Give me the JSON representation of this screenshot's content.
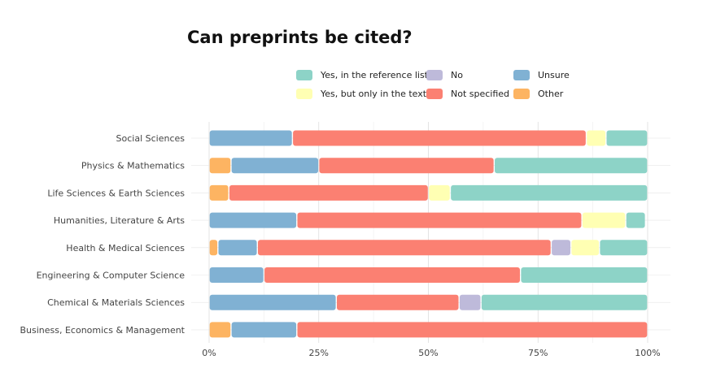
{
  "chart_data": {
    "type": "bar",
    "orientation": "horizontal",
    "stacked": true,
    "normalized": true,
    "title": "Can preprints be cited?",
    "xlabel": "",
    "ylabel": "",
    "xlim": [
      0,
      100
    ],
    "x_ticks": [
      "0%",
      "25%",
      "50%",
      "75%",
      "100%"
    ],
    "x_tick_values": [
      0,
      25,
      50,
      75,
      100
    ],
    "grid": true,
    "legend_position": "top-right",
    "categories": [
      "Social Sciences",
      "Physics & Mathematics",
      "Life Sciences & Earth Sciences",
      "Humanities, Literature & Arts",
      "Health & Medical Sciences",
      "Engineering & Computer Science",
      "Chemical & Materials Sciences",
      "Business, Economics & Management"
    ],
    "series": [
      {
        "name": "Other",
        "color": "#FDB462",
        "values": [
          0,
          5,
          4.5,
          0,
          2,
          0,
          0,
          5
        ]
      },
      {
        "name": "Unsure",
        "color": "#80B1D3",
        "values": [
          19,
          20,
          0,
          20,
          9,
          12.5,
          29,
          15
        ]
      },
      {
        "name": "Not specified",
        "color": "#FB8072",
        "values": [
          67,
          40,
          45.5,
          65,
          67,
          58.5,
          28,
          80
        ]
      },
      {
        "name": "No",
        "color": "#BEBADA",
        "values": [
          0,
          0,
          0,
          0,
          4.5,
          0,
          5,
          0
        ]
      },
      {
        "name": "Yes, but only in the text",
        "color": "#FFFFB3",
        "values": [
          4.5,
          0,
          5,
          10,
          6.5,
          0,
          0,
          0
        ]
      },
      {
        "name": "Yes, in the reference list",
        "color": "#8DD3C7",
        "values": [
          9.5,
          35,
          45,
          4.5,
          11,
          29,
          38,
          0
        ]
      }
    ],
    "legend_order": [
      "Yes, in the reference list",
      "No",
      "Unsure",
      "Yes, but only in the text",
      "Not specified",
      "Other"
    ]
  }
}
